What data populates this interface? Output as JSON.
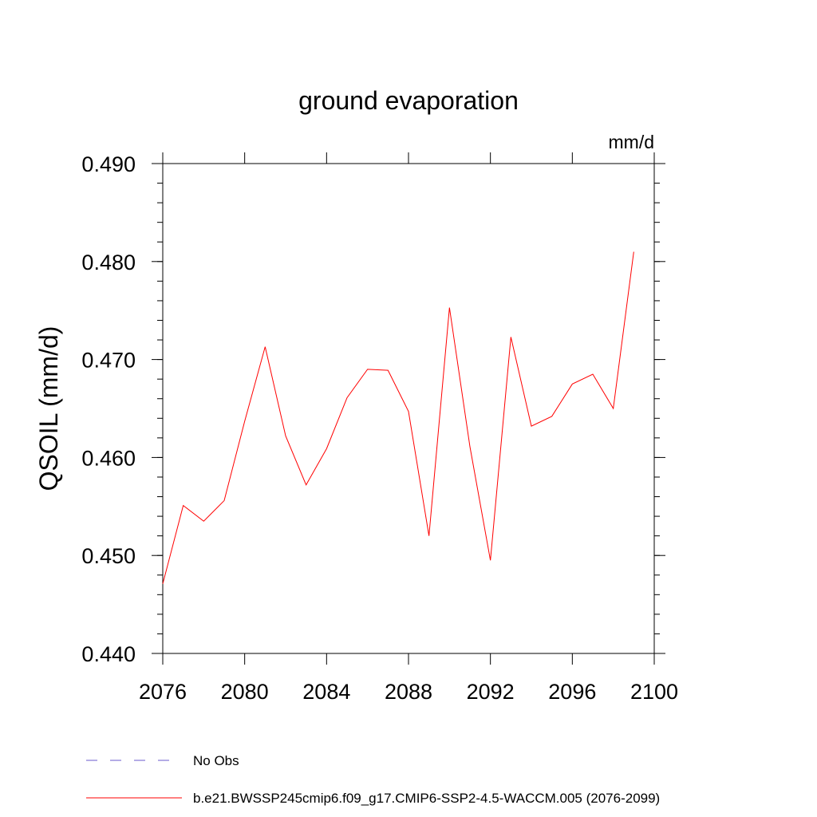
{
  "chart_data": {
    "type": "line",
    "title": "ground evaporation",
    "units_label": "mm/d",
    "ylabel": "QSOIL  (mm/d)",
    "xlabel": "",
    "xlim": [
      2076,
      2100
    ],
    "ylim": [
      0.44,
      0.49
    ],
    "x_ticks": [
      2076,
      2080,
      2084,
      2088,
      2092,
      2096,
      2100
    ],
    "x_tick_labels": [
      "2076",
      "2080",
      "2084",
      "2088",
      "2092",
      "2096",
      "2100"
    ],
    "y_ticks": [
      0.44,
      0.45,
      0.46,
      0.47,
      0.48,
      0.49
    ],
    "y_tick_labels": [
      "0.440",
      "0.450",
      "0.460",
      "0.470",
      "0.480",
      "0.490"
    ],
    "x": [
      2076,
      2077,
      2078,
      2079,
      2080,
      2081,
      2082,
      2083,
      2084,
      2085,
      2086,
      2087,
      2088,
      2089,
      2090,
      2091,
      2092,
      2093,
      2094,
      2095,
      2096,
      2097,
      2098,
      2099
    ],
    "series": [
      {
        "name": "b.e21.BWSSP245cmip6.f09_g17.CMIP6-SSP2-4.5-WACCM.005 (2076-2099)",
        "color": "#ff0000",
        "style": "solid",
        "values": [
          0.4471,
          0.4551,
          0.4535,
          0.4556,
          0.4637,
          0.4713,
          0.4622,
          0.4572,
          0.4609,
          0.4661,
          0.469,
          0.4689,
          0.4647,
          0.452,
          0.4753,
          0.4611,
          0.4495,
          0.4723,
          0.4632,
          0.4642,
          0.4675,
          0.4685,
          0.465,
          0.481
        ]
      }
    ],
    "legend": [
      {
        "label": "No Obs",
        "color": "#6a5acd",
        "style": "dashed"
      },
      {
        "label": "b.e21.BWSSP245cmip6.f09_g17.CMIP6-SSP2-4.5-WACCM.005 (2076-2099)",
        "color": "#ff0000",
        "style": "solid"
      }
    ],
    "legend_position": "bottom-left"
  }
}
